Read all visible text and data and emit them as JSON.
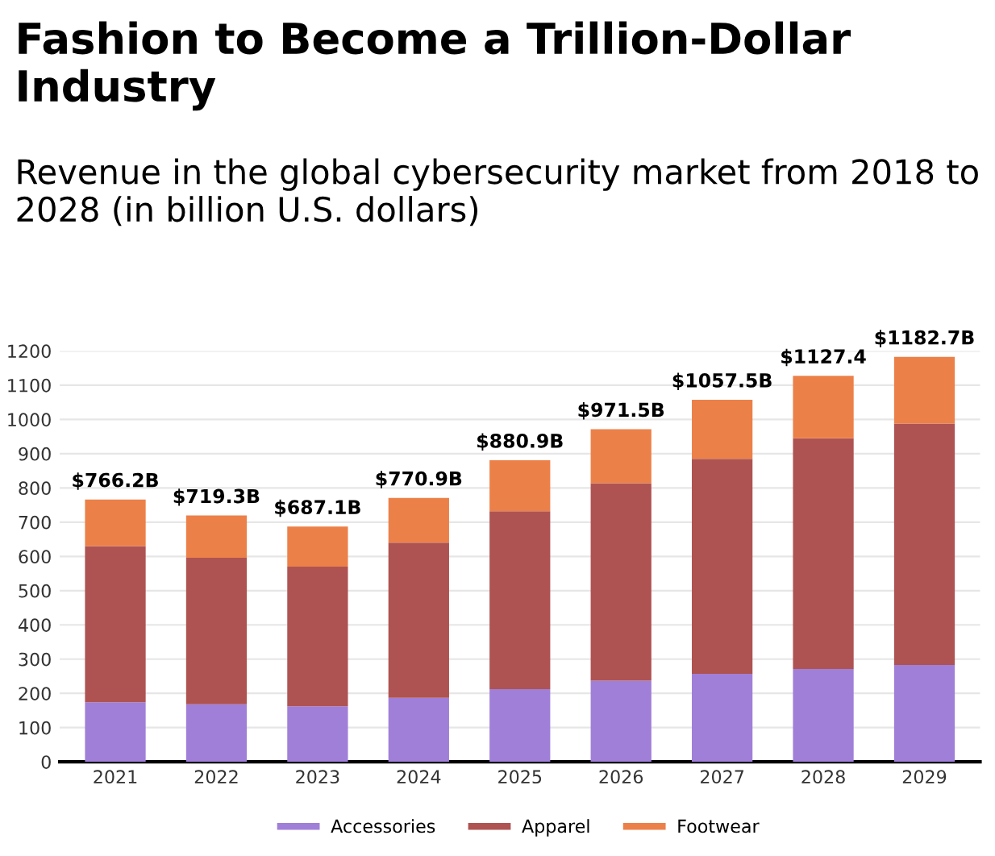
{
  "chart_data": {
    "type": "bar",
    "stacked": true,
    "title": "Fashion to Become a Trillion-Dollar Industry",
    "subtitle": "Revenue in the global cybersecurity market from 2018 to 2028 (in billion U.S. dollars)",
    "categories": [
      "2021",
      "2022",
      "2023",
      "2024",
      "2025",
      "2026",
      "2027",
      "2028",
      "2029"
    ],
    "series": [
      {
        "name": "Accessories",
        "color": "#a07fd8",
        "values": [
          174,
          168,
          162,
          187,
          212,
          237,
          257,
          271,
          283
        ]
      },
      {
        "name": "Apparel",
        "color": "#ae5352",
        "values": [
          456,
          428,
          408,
          453,
          520,
          577,
          628,
          674,
          705
        ]
      },
      {
        "name": "Footwear",
        "color": "#ec8049",
        "values": [
          136.2,
          123.3,
          117.1,
          130.9,
          148.9,
          157.5,
          172.5,
          182.4,
          194.7
        ]
      }
    ],
    "totals": [
      "$766.2B",
      "$719.3B",
      "$687.1B",
      "$770.9B",
      "$880.9B",
      "$971.5B",
      "$1057.5B",
      "$1127.4",
      "$1182.7B"
    ],
    "ylim": [
      0,
      1200
    ],
    "yticks": [
      0,
      100,
      200,
      300,
      400,
      500,
      600,
      700,
      800,
      900,
      1000,
      1100,
      1200
    ],
    "grid": "y",
    "legend": "bottom"
  }
}
